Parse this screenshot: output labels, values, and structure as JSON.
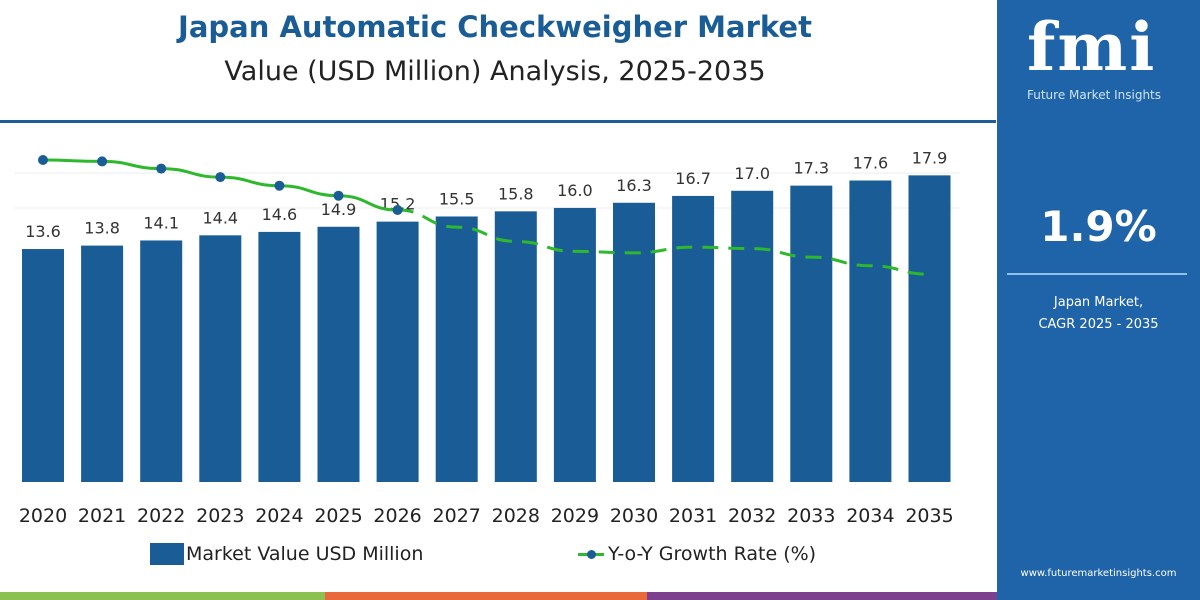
{
  "chart_data": {
    "type": "bar",
    "title": "Japan Automatic Checkweigher Market",
    "subtitle": "Value (USD Million) Analysis, 2025-2035",
    "categories": [
      "2020",
      "2021",
      "2022",
      "2023",
      "2024",
      "2025",
      "2026",
      "2027",
      "2028",
      "2029",
      "2030",
      "2031",
      "2032",
      "2033",
      "2034",
      "2035"
    ],
    "series": [
      {
        "name": "Market Value USD Million",
        "type": "bar",
        "color": "#1a5c96",
        "values": [
          13.6,
          13.8,
          14.1,
          14.4,
          14.6,
          14.9,
          15.2,
          15.5,
          15.8,
          16.0,
          16.3,
          16.7,
          17.0,
          17.3,
          17.6,
          17.9
        ]
      },
      {
        "name": "Y-o-Y Growth Rate (%)",
        "type": "line",
        "color": "#2db82d",
        "marker_color": "#1a5c96",
        "values": [
          2.4,
          2.39,
          2.34,
          2.28,
          2.22,
          2.15,
          2.05,
          1.93,
          1.83,
          1.76,
          1.75,
          1.79,
          1.78,
          1.72,
          1.66,
          1.6
        ],
        "solid_until": "2026",
        "dashed_after": "2026"
      }
    ],
    "data_labels": true,
    "legend": "bottom",
    "grid": true
  },
  "legend": {
    "bar": "Market Value USD Million",
    "line": "Y-o-Y Growth Rate (%)"
  },
  "panel": {
    "logo": "fmi",
    "logo_sub": "Future Market Insights",
    "cagr_value": "1.9%",
    "cagr_label_1": "Japan Market,",
    "cagr_label_2": "CAGR 2025 - 2035",
    "website": "www.futuremarketinsights.com"
  },
  "footer_colors": [
    "#8cc152",
    "#e9693a",
    "#7b3f8e"
  ]
}
